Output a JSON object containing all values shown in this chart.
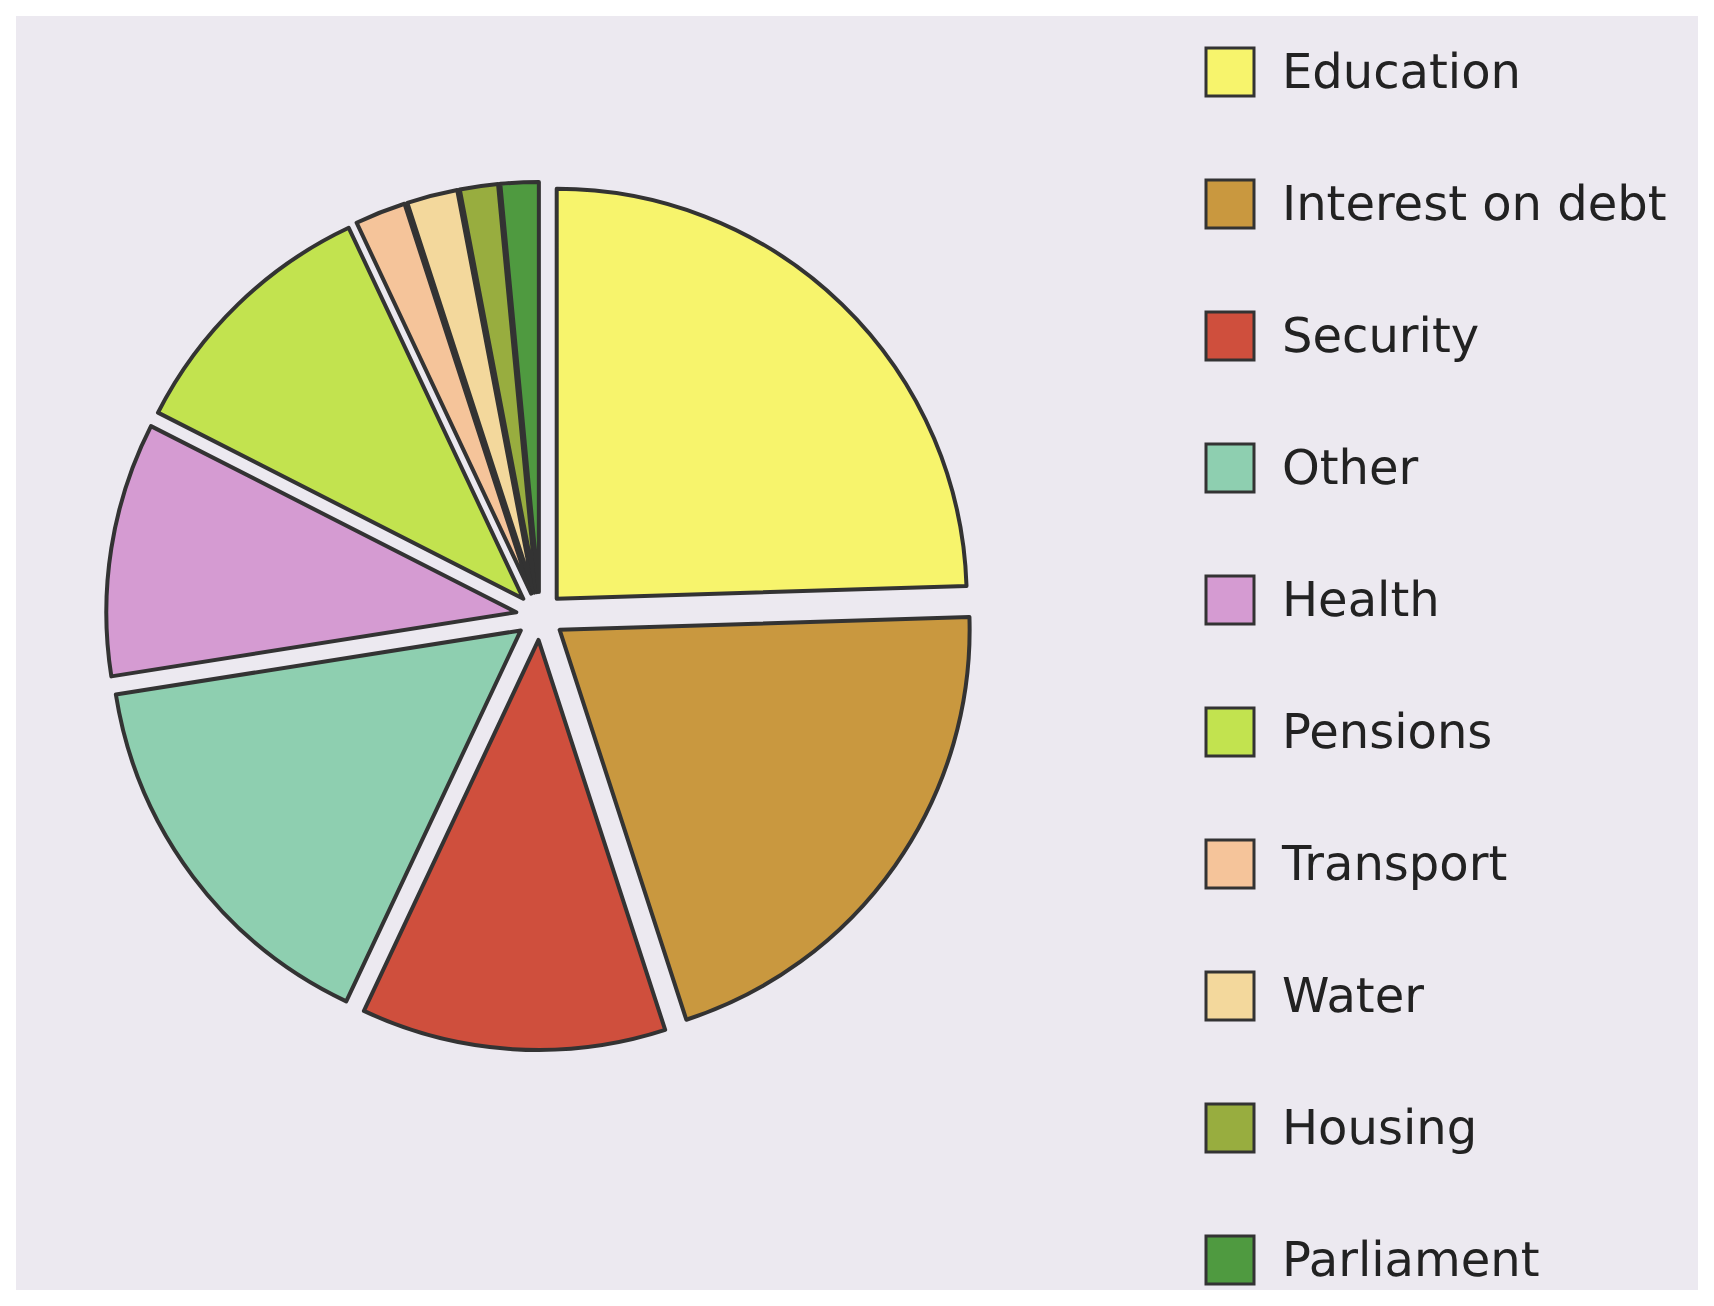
{
  "chart_data": {
    "type": "pie",
    "categories": [
      "Education",
      "Interest on debt",
      "Security",
      "Other",
      "Health",
      "Pensions",
      "Transport",
      "Water",
      "Housing",
      "Parliament"
    ],
    "values": [
      24.5,
      20.5,
      12,
      15.5,
      10,
      10.5,
      2,
      2,
      1.5,
      1.5
    ],
    "colors": [
      "#f7f46c",
      "#c9983f",
      "#cf4f3d",
      "#8ecfb0",
      "#d59bd2",
      "#c2e34f",
      "#f5c49a",
      "#f3d89c",
      "#98ad3f",
      "#4f9a40"
    ],
    "legend": "right"
  }
}
